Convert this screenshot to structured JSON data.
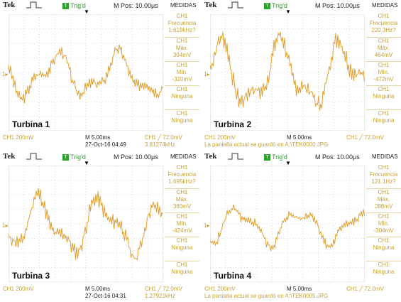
{
  "panels": [
    {
      "brand": "Tek",
      "trig_status": "Trig'd",
      "trig_icon": "T",
      "m_pos": "M Pos: 10.00μs",
      "menu_title": "MEDIDAS",
      "label": "Turbina 1",
      "measurements": [
        {
          "ch": "CH1",
          "name": "Frecuencia",
          "value": "1.619kHz?"
        },
        {
          "ch": "CH1",
          "name": "Máx.",
          "value": "304mV"
        },
        {
          "ch": "CH1",
          "name": "Mín.",
          "value": "-320mV"
        },
        {
          "ch": "CH1",
          "name": "Ninguna",
          "value": ""
        },
        {
          "ch": "CH1",
          "name": "Ninguna",
          "value": ""
        }
      ],
      "ch_scale": "CH1  200mV",
      "timebase": "M 5.00ms",
      "trigger_level": "CH1 ╱ 72.0mV",
      "date": "27-Oct-16 04:49",
      "trigger_freq": "3.81274kHz",
      "message": "",
      "amplitude": 0.55,
      "seed": 3
    },
    {
      "brand": "Tek",
      "trig_status": "Trig'd",
      "trig_icon": "T",
      "m_pos": "M Pos: 10.00μs",
      "menu_title": "MEDIDAS",
      "label": "Turbina 2",
      "measurements": [
        {
          "ch": "CH1",
          "name": "Frecuencia",
          "value": "220.3Hz?"
        },
        {
          "ch": "CH1",
          "name": "Máx.",
          "value": "464mV"
        },
        {
          "ch": "CH1",
          "name": "Mín.",
          "value": "-472mV"
        },
        {
          "ch": "CH1",
          "name": "Ninguna",
          "value": ""
        },
        {
          "ch": "CH1",
          "name": "Ninguna",
          "value": ""
        }
      ],
      "ch_scale": "CH1  200mV",
      "timebase": "M 5.00ms",
      "trigger_level": "CH1 ╱ 72.0mV",
      "date": "",
      "trigger_freq": "",
      "message": "La pantalla actual se guardó en A:\\TEK0000.JPG",
      "amplitude": 0.85,
      "seed": 7
    },
    {
      "brand": "Tek",
      "trig_status": "Trig'd",
      "trig_icon": "T",
      "m_pos": "M Pos: 10.00μs",
      "menu_title": "MEDIDAS",
      "label": "Turbina 3",
      "measurements": [
        {
          "ch": "CH1",
          "name": "Frecuencia",
          "value": "1.695kHz?"
        },
        {
          "ch": "CH1",
          "name": "Máx.",
          "value": "360mV"
        },
        {
          "ch": "CH1",
          "name": "Mín.",
          "value": "-424mV"
        },
        {
          "ch": "CH1",
          "name": "Ninguna",
          "value": ""
        },
        {
          "ch": "CH1",
          "name": "Ninguna",
          "value": ""
        }
      ],
      "ch_scale": "CH1  200mV",
      "timebase": "M 5.00ms",
      "trigger_level": "CH1 ╱ 72.0mV",
      "date": "27-Oct-16 04:31",
      "trigger_freq": "1.27921kHz",
      "message": "",
      "amplitude": 0.7,
      "seed": 11
    },
    {
      "brand": "Tek",
      "trig_status": "Trig'd",
      "trig_icon": "T",
      "m_pos": "M Pos: 10.00μs",
      "menu_title": "MEDIDAS",
      "label": "Turbina 4",
      "measurements": [
        {
          "ch": "CH1",
          "name": "Frecuencia",
          "value": "121.1Hz?"
        },
        {
          "ch": "CH1",
          "name": "Máx.",
          "value": "288mV"
        },
        {
          "ch": "CH1",
          "name": "Mín.",
          "value": "-304mV"
        },
        {
          "ch": "CH1",
          "name": "Ninguna",
          "value": ""
        },
        {
          "ch": "CH1",
          "name": "Ninguna",
          "value": ""
        }
      ],
      "ch_scale": "CH1  200mV",
      "timebase": "M 5.00ms",
      "trigger_level": "CH1 ╱ 72.0mV",
      "date": "",
      "trigger_freq": "",
      "message": "La pantalla actual se guardó en A:\\TEK0005.JPG",
      "amplitude": 0.45,
      "seed": 5
    }
  ],
  "colors": {
    "trace": "#e0a030",
    "grid": "#b8b8b8",
    "accent": "#c8a230",
    "trig": "#2aa52a"
  }
}
